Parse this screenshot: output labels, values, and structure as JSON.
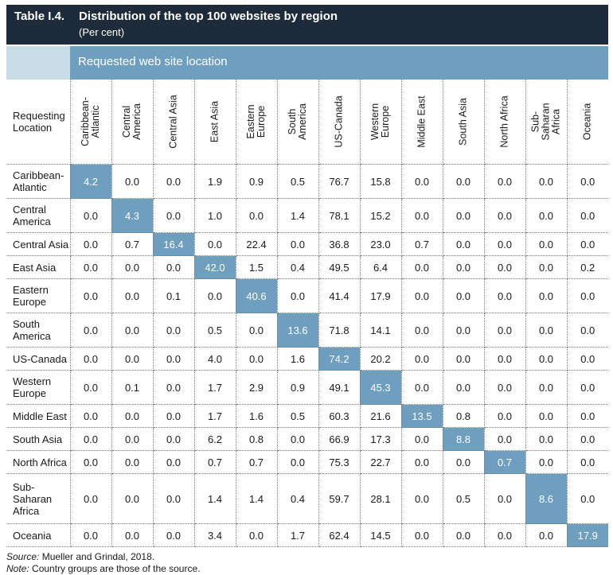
{
  "header": {
    "label": "Table I.4.",
    "title": "Distribution of the top 100 websites by region",
    "subtitle": "(Per cent)"
  },
  "column_group": "Requested web site location",
  "corner_label": "Requesting\nLocation",
  "columns": [
    "Caribbean-\nAtlantic",
    "Central\nAmerica",
    "Central Asia",
    "East Asia",
    "Eastern\nEurope",
    "South\nAmerica",
    "US-Canada",
    "Western\nEurope",
    "Middle East",
    "South Asia",
    "North Africa",
    "Sub-\nSaharan\nAfrica",
    "Oceania"
  ],
  "rows": [
    {
      "label": "Caribbean-\nAtlantic",
      "values": [
        "4.2",
        "0.0",
        "0.0",
        "1.9",
        "0.9",
        "0.5",
        "76.7",
        "15.8",
        "0.0",
        "0.0",
        "0.0",
        "0.0",
        "0.0"
      ]
    },
    {
      "label": "Central\nAmerica",
      "values": [
        "0.0",
        "4.3",
        "0.0",
        "1.0",
        "0.0",
        "1.4",
        "78.1",
        "15.2",
        "0.0",
        "0.0",
        "0.0",
        "0.0",
        "0.0"
      ]
    },
    {
      "label": "Central Asia",
      "values": [
        "0.0",
        "0.7",
        "16.4",
        "0.0",
        "22.4",
        "0.0",
        "36.8",
        "23.0",
        "0.7",
        "0.0",
        "0.0",
        "0.0",
        "0.0"
      ]
    },
    {
      "label": "East Asia",
      "values": [
        "0.0",
        "0.0",
        "0.0",
        "42.0",
        "1.5",
        "0.4",
        "49.5",
        "6.4",
        "0.0",
        "0.0",
        "0.0",
        "0.0",
        "0.2"
      ]
    },
    {
      "label": "Eastern\nEurope",
      "values": [
        "0.0",
        "0.0",
        "0.1",
        "0.0",
        "40.6",
        "0.0",
        "41.4",
        "17.9",
        "0.0",
        "0.0",
        "0.0",
        "0.0",
        "0.0"
      ]
    },
    {
      "label": "South\nAmerica",
      "values": [
        "0.0",
        "0.0",
        "0.0",
        "0.5",
        "0.0",
        "13.6",
        "71.8",
        "14.1",
        "0.0",
        "0.0",
        "0.0",
        "0.0",
        "0.0"
      ]
    },
    {
      "label": "US-Canada",
      "values": [
        "0.0",
        "0.0",
        "0.0",
        "4.0",
        "0.0",
        "1.6",
        "74.2",
        "20.2",
        "0.0",
        "0.0",
        "0.0",
        "0.0",
        "0.0"
      ]
    },
    {
      "label": "Western\nEurope",
      "values": [
        "0.0",
        "0.1",
        "0.0",
        "1.7",
        "2.9",
        "0.9",
        "49.1",
        "45.3",
        "0.0",
        "0.0",
        "0.0",
        "0.0",
        "0.0"
      ]
    },
    {
      "label": "Middle East",
      "values": [
        "0.0",
        "0.0",
        "0.0",
        "1.7",
        "1.6",
        "0.5",
        "60.3",
        "21.6",
        "13.5",
        "0.8",
        "0.0",
        "0.0",
        "0.0"
      ]
    },
    {
      "label": "South Asia",
      "values": [
        "0.0",
        "0.0",
        "0.0",
        "6.2",
        "0.8",
        "0.0",
        "66.9",
        "17.3",
        "0.0",
        "8.8",
        "0.0",
        "0.0",
        "0.0"
      ]
    },
    {
      "label": "North Africa",
      "values": [
        "0.0",
        "0.0",
        "0.0",
        "0.7",
        "0.7",
        "0.0",
        "75.3",
        "22.7",
        "0.0",
        "0.0",
        "0.7",
        "0.0",
        "0.0"
      ]
    },
    {
      "label": "Sub-\nSaharan\nAfrica",
      "values": [
        "0.0",
        "0.0",
        "0.0",
        "1.4",
        "1.4",
        "0.4",
        "59.7",
        "28.1",
        "0.0",
        "0.5",
        "0.0",
        "8.6",
        "0.0"
      ]
    },
    {
      "label": "Oceania",
      "values": [
        "0.0",
        "0.0",
        "0.0",
        "3.4",
        "0.0",
        "1.7",
        "62.4",
        "14.5",
        "0.0",
        "0.0",
        "0.0",
        "0.0",
        "17.9"
      ]
    }
  ],
  "footer": {
    "source_label": "Source:",
    "source_text": " Mueller and Grindal, 2018.",
    "note_label": "Note:",
    "note_text": " Country groups are those of the source."
  },
  "colors": {
    "title_bg": "#1d2b3a",
    "accent": "#6e9fbf",
    "band": "#c8dce6"
  }
}
